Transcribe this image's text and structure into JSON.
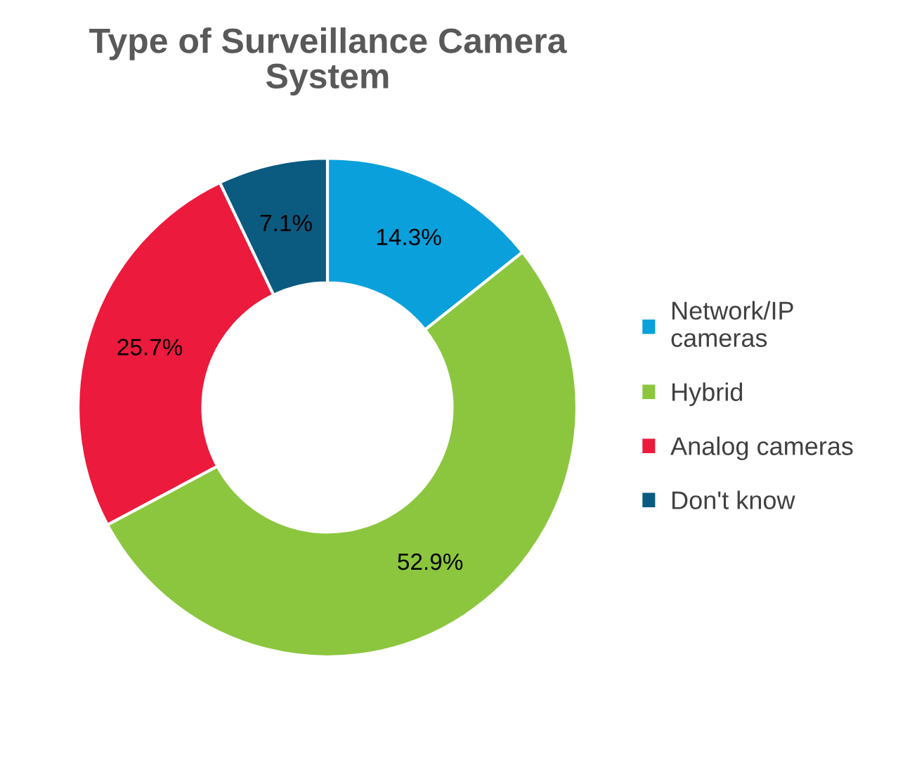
{
  "chart_data": {
    "type": "donut",
    "title": "Type of Surveillance Camera\nSystem",
    "categories": [
      "Network/IP\ncameras",
      "Hybrid",
      "Analog cameras",
      "Don't know"
    ],
    "values": [
      14.3,
      52.9,
      25.7,
      7.1
    ],
    "value_labels": [
      "14.3%",
      "52.9%",
      "25.7%",
      "7.1%"
    ],
    "colors": [
      "#0aa0dc",
      "#8cc63f",
      "#ec1a3c",
      "#0b5a80"
    ],
    "legend": "right"
  }
}
